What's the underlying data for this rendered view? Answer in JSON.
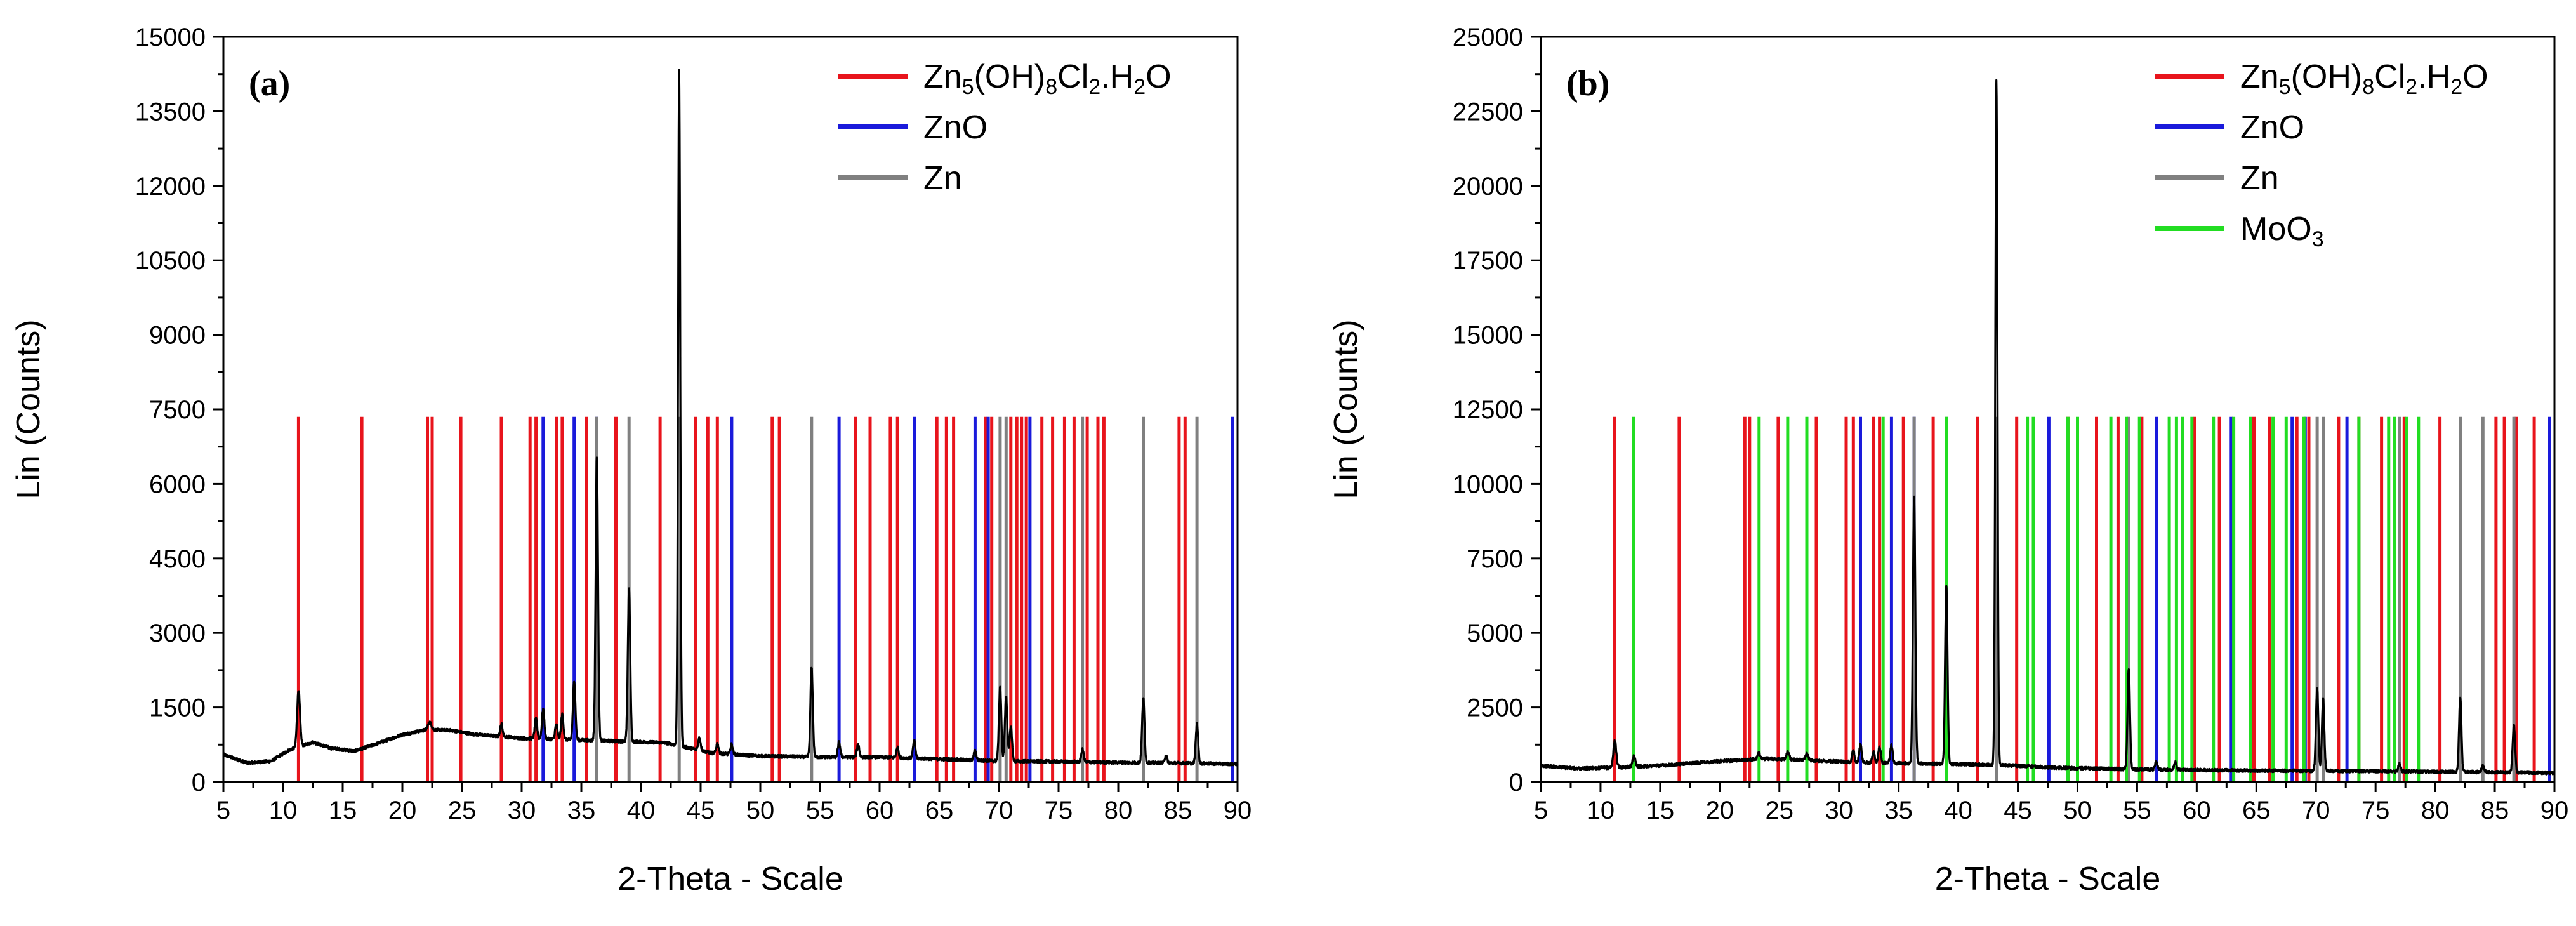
{
  "chart_data": [
    {
      "type": "line",
      "panel_label": "(a)",
      "xlabel": "2-Theta - Scale",
      "ylabel": "Lin (Counts)",
      "xlim": [
        5,
        90
      ],
      "ylim": [
        0,
        15000
      ],
      "x_ticks": [
        5,
        10,
        15,
        20,
        25,
        30,
        35,
        40,
        45,
        50,
        55,
        60,
        65,
        70,
        75,
        80,
        85,
        90
      ],
      "y_ticks": [
        0,
        1500,
        3000,
        4500,
        6000,
        7500,
        9000,
        10500,
        12000,
        13500,
        15000
      ],
      "x_tick_labels": [
        "5",
        "10",
        "15",
        "20",
        "25",
        "30",
        "35",
        "40",
        "45",
        "50",
        "55",
        "60",
        "65",
        "70",
        "75",
        "80",
        "85",
        "90"
      ],
      "y_tick_labels": [
        "0",
        "1500",
        "3000",
        "4500",
        "6000",
        "7500",
        "9000",
        "10500",
        "12000",
        "13500",
        "15000"
      ],
      "legend_position": "top-right",
      "legend": [
        {
          "label": "Zn5(OH)8Cl2.H2O",
          "base": "Zn",
          "parts": [
            [
              "Zn",
              ""
            ],
            [
              "5",
              "sub"
            ],
            [
              "(OH)",
              ""
            ],
            [
              "8",
              "sub"
            ],
            [
              "Cl",
              ""
            ],
            [
              "2",
              "sub"
            ],
            [
              ".H",
              ""
            ],
            [
              "2",
              "sub"
            ],
            [
              "O",
              ""
            ]
          ],
          "color": "#e8141c"
        },
        {
          "label": "ZnO",
          "base": "ZnO",
          "parts": [
            [
              "ZnO",
              ""
            ]
          ],
          "color": "#1a1adb"
        },
        {
          "label": "Zn",
          "base": "Zn",
          "parts": [
            [
              "Zn",
              ""
            ]
          ],
          "color": "#808080"
        }
      ],
      "reference_line_top": 7350,
      "reference_lines": {
        "#e8141c": [
          11.3,
          16.6,
          22.1,
          22.5,
          24.9,
          28.3,
          30.7,
          31.2,
          32.9,
          33.4,
          35.4,
          37.9,
          41.6,
          44.6,
          45.6,
          46.4,
          51.0,
          51.6,
          58.0,
          59.2,
          60.9,
          61.5,
          64.8,
          65.6,
          66.2,
          68.9,
          69.4,
          71.0,
          71.5,
          71.9,
          72.3,
          73.6,
          74.5,
          75.5,
          76.3,
          77.4,
          78.3,
          78.8,
          85.1,
          85.6
        ],
        "#1a1adb": [
          31.8,
          34.4,
          36.3,
          47.6,
          56.6,
          62.9,
          68.0,
          69.1,
          72.6,
          89.6
        ],
        "#808080": [
          36.3,
          39.0,
          43.2,
          54.3,
          70.1,
          70.6,
          77.0,
          82.1,
          86.6
        ]
      },
      "series": {
        "name": "measured",
        "color": "#000000",
        "baseline": [
          [
            5,
            550
          ],
          [
            7,
            380
          ],
          [
            9,
            420
          ],
          [
            10.5,
            640
          ],
          [
            12.5,
            800
          ],
          [
            14,
            680
          ],
          [
            16,
            620
          ],
          [
            18,
            780
          ],
          [
            20,
            950
          ],
          [
            22,
            1050
          ],
          [
            24,
            1040
          ],
          [
            26,
            960
          ],
          [
            28,
            920
          ],
          [
            30,
            880
          ],
          [
            34,
            850
          ],
          [
            38,
            820
          ],
          [
            42,
            790
          ],
          [
            46,
            580
          ],
          [
            50,
            520
          ],
          [
            55,
            500
          ],
          [
            60,
            500
          ],
          [
            65,
            460
          ],
          [
            70,
            420
          ],
          [
            75,
            410
          ],
          [
            80,
            390
          ],
          [
            85,
            380
          ],
          [
            90,
            360
          ]
        ],
        "peaks": [
          [
            11.3,
            1150,
            0.12
          ],
          [
            22.3,
            150,
            0.15
          ],
          [
            28.3,
            250,
            0.1
          ],
          [
            31.2,
            400,
            0.1
          ],
          [
            31.8,
            600,
            0.1
          ],
          [
            32.9,
            300,
            0.1
          ],
          [
            33.4,
            500,
            0.1
          ],
          [
            34.4,
            1200,
            0.1
          ],
          [
            36.3,
            5700,
            0.1
          ],
          [
            39.0,
            3100,
            0.1
          ],
          [
            43.2,
            13600,
            0.09
          ],
          [
            44.9,
            250,
            0.1
          ],
          [
            46.4,
            200,
            0.1
          ],
          [
            47.6,
            200,
            0.1
          ],
          [
            54.3,
            1800,
            0.1
          ],
          [
            56.6,
            300,
            0.1
          ],
          [
            58.2,
            250,
            0.1
          ],
          [
            61.5,
            200,
            0.1
          ],
          [
            62.9,
            350,
            0.1
          ],
          [
            68.0,
            200,
            0.1
          ],
          [
            70.1,
            1500,
            0.1
          ],
          [
            70.6,
            1300,
            0.1
          ],
          [
            71.0,
            700,
            0.1
          ],
          [
            77.0,
            250,
            0.1
          ],
          [
            82.1,
            1300,
            0.1
          ],
          [
            84.0,
            150,
            0.1
          ],
          [
            86.6,
            800,
            0.1
          ]
        ]
      }
    },
    {
      "type": "line",
      "panel_label": "(b)",
      "xlabel": "2-Theta - Scale",
      "ylabel": "Lin (Counts)",
      "xlim": [
        5,
        90
      ],
      "ylim": [
        0,
        25000
      ],
      "x_ticks": [
        5,
        10,
        15,
        20,
        25,
        30,
        35,
        40,
        45,
        50,
        55,
        60,
        65,
        70,
        75,
        80,
        85,
        90
      ],
      "y_ticks": [
        0,
        2500,
        5000,
        7500,
        10000,
        12500,
        15000,
        17500,
        20000,
        22500,
        25000
      ],
      "x_tick_labels": [
        "5",
        "10",
        "15",
        "20",
        "25",
        "30",
        "35",
        "40",
        "45",
        "50",
        "55",
        "60",
        "65",
        "70",
        "75",
        "80",
        "85",
        "90"
      ],
      "y_tick_labels": [
        "0",
        "2500",
        "5000",
        "7500",
        "10000",
        "12500",
        "15000",
        "17500",
        "20000",
        "22500",
        "25000"
      ],
      "legend_position": "top-right",
      "legend": [
        {
          "label": "Zn5(OH)8Cl2.H2O",
          "base": "Zn",
          "parts": [
            [
              "Zn",
              ""
            ],
            [
              "5",
              "sub"
            ],
            [
              "(OH)",
              ""
            ],
            [
              "8",
              "sub"
            ],
            [
              "Cl",
              ""
            ],
            [
              "2",
              "sub"
            ],
            [
              ".H",
              ""
            ],
            [
              "2",
              "sub"
            ],
            [
              "O",
              ""
            ]
          ],
          "color": "#e8141c"
        },
        {
          "label": "ZnO",
          "base": "ZnO",
          "parts": [
            [
              "ZnO",
              ""
            ]
          ],
          "color": "#1a1adb"
        },
        {
          "label": "Zn",
          "base": "Zn",
          "parts": [
            [
              "Zn",
              ""
            ]
          ],
          "color": "#808080"
        },
        {
          "label": "MoO3",
          "base": "MoO",
          "parts": [
            [
              "MoO",
              ""
            ],
            [
              "3",
              "sub"
            ]
          ],
          "color": "#22dd22"
        }
      ],
      "reference_line_top": 12250,
      "reference_lines": {
        "#e8141c": [
          11.2,
          16.6,
          22.1,
          22.5,
          24.9,
          28.1,
          30.6,
          31.2,
          32.9,
          33.4,
          35.4,
          37.9,
          41.6,
          44.9,
          49.2,
          51.6,
          53.4,
          55.4,
          59.8,
          61.9,
          64.8,
          66.1,
          68.4,
          69.4,
          71.9,
          73.6,
          75.5,
          77.4,
          80.4,
          85.1,
          85.8,
          86.8,
          88.3
        ],
        "#1a1adb": [
          31.8,
          34.4,
          36.3,
          47.6,
          56.6,
          62.9,
          68.0,
          69.1,
          72.6,
          89.6
        ],
        "#808080": [
          36.3,
          39.0,
          43.2,
          54.3,
          70.1,
          70.6,
          77.0,
          82.1,
          84.0,
          86.6
        ],
        "#22dd22": [
          12.8,
          23.3,
          25.7,
          27.3,
          33.7,
          39.0,
          45.8,
          46.3,
          49.2,
          50.0,
          52.8,
          54.1,
          55.2,
          57.7,
          58.3,
          58.8,
          59.6,
          61.4,
          63.1,
          64.5,
          66.4,
          67.5,
          69.0,
          73.6,
          76.1,
          76.6,
          77.6,
          78.6
        ]
      },
      "series": {
        "name": "measured",
        "color": "#000000",
        "baseline": [
          [
            5,
            550
          ],
          [
            8,
            450
          ],
          [
            11,
            480
          ],
          [
            15,
            550
          ],
          [
            20,
            700
          ],
          [
            24,
            780
          ],
          [
            28,
            720
          ],
          [
            32,
            650
          ],
          [
            36,
            620
          ],
          [
            40,
            600
          ],
          [
            44,
            560
          ],
          [
            48,
            480
          ],
          [
            55,
            420
          ],
          [
            60,
            400
          ],
          [
            65,
            380
          ],
          [
            70,
            370
          ],
          [
            75,
            360
          ],
          [
            80,
            340
          ],
          [
            85,
            330
          ],
          [
            90,
            300
          ]
        ],
        "peaks": [
          [
            11.2,
            900,
            0.12
          ],
          [
            12.8,
            350,
            0.12
          ],
          [
            23.3,
            200,
            0.12
          ],
          [
            25.7,
            250,
            0.12
          ],
          [
            27.3,
            200,
            0.12
          ],
          [
            31.2,
            400,
            0.1
          ],
          [
            31.8,
            600,
            0.1
          ],
          [
            32.9,
            350,
            0.1
          ],
          [
            33.4,
            550,
            0.1
          ],
          [
            34.4,
            600,
            0.1
          ],
          [
            36.3,
            9000,
            0.1
          ],
          [
            39.0,
            6000,
            0.1
          ],
          [
            43.2,
            23000,
            0.09
          ],
          [
            54.3,
            3400,
            0.1
          ],
          [
            56.6,
            250,
            0.1
          ],
          [
            58.2,
            250,
            0.1
          ],
          [
            70.1,
            2800,
            0.1
          ],
          [
            70.6,
            2400,
            0.1
          ],
          [
            77.0,
            250,
            0.1
          ],
          [
            82.1,
            2500,
            0.1
          ],
          [
            84.0,
            200,
            0.1
          ],
          [
            86.6,
            1600,
            0.1
          ]
        ]
      }
    }
  ]
}
